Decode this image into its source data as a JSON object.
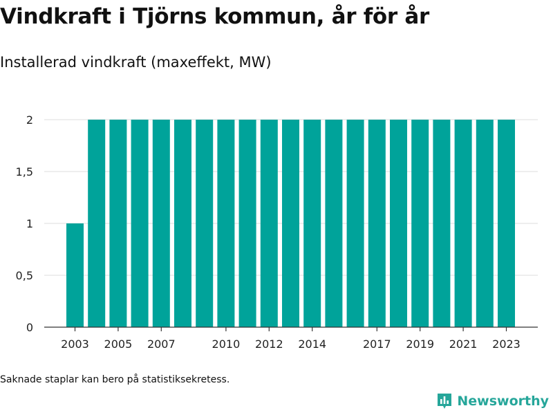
{
  "chart_data": {
    "type": "bar",
    "title": "Vindkraft i Tjörns kommun, år för år",
    "subtitle": "Installerad vindkraft (maxeffekt, MW)",
    "categories": [
      "2003",
      "2004",
      "2005",
      "2006",
      "2007",
      "2008",
      "2009",
      "2010",
      "2011",
      "2012",
      "2013",
      "2014",
      "2015",
      "2016",
      "2017",
      "2018",
      "2019",
      "2020",
      "2021",
      "2022",
      "2023"
    ],
    "values": [
      1,
      2,
      2,
      2,
      2,
      2,
      2,
      2,
      2,
      2,
      2,
      2,
      2,
      2,
      2,
      2,
      2,
      2,
      2,
      2,
      2
    ],
    "x_tick_labels": [
      "2003",
      "2005",
      "2007",
      "2010",
      "2012",
      "2014",
      "2017",
      "2019",
      "2021",
      "2023"
    ],
    "y_ticks": [
      0,
      0.5,
      1,
      1.5,
      2
    ],
    "y_tick_labels": [
      "0",
      "0,5",
      "1",
      "1,5",
      "2"
    ],
    "ylim": [
      0,
      2
    ],
    "xlabel": "",
    "ylabel": "",
    "grid": true,
    "bar_color": "#00a39a",
    "grid_color": "#dddddd"
  },
  "footnote": "Saknade staplar kan bero på statistiksekretess.",
  "brand": {
    "name": "Newsworthy",
    "color": "#26a69a",
    "icon": "newsworthy-logo-icon"
  }
}
